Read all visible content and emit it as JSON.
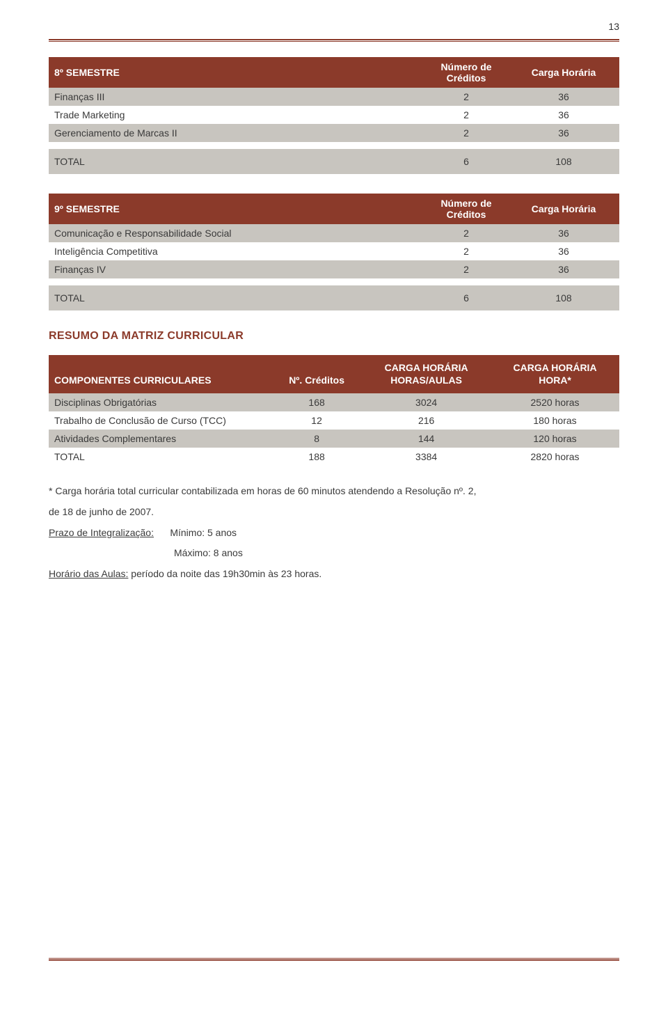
{
  "page_number": "13",
  "table8": {
    "header": {
      "title": "8º SEMESTRE",
      "col2_l1": "Número de",
      "col2_l2": "Créditos",
      "col3": "Carga Horária"
    },
    "rows": [
      {
        "name": "Finanças III",
        "cred": "2",
        "carga": "36"
      },
      {
        "name": "Trade Marketing",
        "cred": "2",
        "carga": "36"
      },
      {
        "name": "Gerenciamento de Marcas II",
        "cred": "2",
        "carga": "36"
      }
    ],
    "total": {
      "name": "TOTAL",
      "cred": "6",
      "carga": "108"
    }
  },
  "table9": {
    "header": {
      "title": "9º SEMESTRE",
      "col2_l1": "Número de",
      "col2_l2": "Créditos",
      "col3": "Carga Horária"
    },
    "rows": [
      {
        "name": "Comunicação e Responsabilidade Social",
        "cred": "2",
        "carga": "36"
      },
      {
        "name": "Inteligência Competitiva",
        "cred": "2",
        "carga": "36"
      },
      {
        "name": "Finanças IV",
        "cred": "2",
        "carga": "36"
      }
    ],
    "total": {
      "name": "TOTAL",
      "cred": "6",
      "carga": "108"
    }
  },
  "resumo_title": "RESUMO DA MATRIZ CURRICULAR",
  "summary": {
    "header": {
      "col1": "COMPONENTES CURRICULARES",
      "col2": "Nº. Créditos",
      "col3_l1": "CARGA HORÁRIA",
      "col3_l2": "HORAS/AULAS",
      "col4_l1": "CARGA HORÁRIA",
      "col4_l2": "HORA*"
    },
    "rows": [
      {
        "name": "Disciplinas Obrigatórias",
        "cred": "168",
        "horas": "3024",
        "hora": "2520 horas"
      },
      {
        "name": "Trabalho de Conclusão de Curso (TCC)",
        "cred": "12",
        "horas": "216",
        "hora": "180 horas"
      },
      {
        "name": "Atividades Complementares",
        "cred": "8",
        "horas": "144",
        "hora": "120 horas"
      },
      {
        "name": "TOTAL",
        "cred": "188",
        "horas": "3384",
        "hora": "2820 horas"
      }
    ]
  },
  "notes": {
    "line1": "* Carga horária total curricular contabilizada em horas de 60 minutos atendendo a Resolução nº. 2,",
    "line2": "de 18 de junho de 2007.",
    "prazo_label": "Prazo de Integralização:",
    "prazo_min": "Mínimo: 5 anos",
    "prazo_max": "Máximo: 8 anos",
    "horario_label": "Horário das Aulas:",
    "horario_text": " período da noite das 19h30min às 23 horas."
  },
  "colors": {
    "brand": "#8b3a2a",
    "grey_row": "#c8c5bf",
    "text": "#3a3a3a"
  }
}
